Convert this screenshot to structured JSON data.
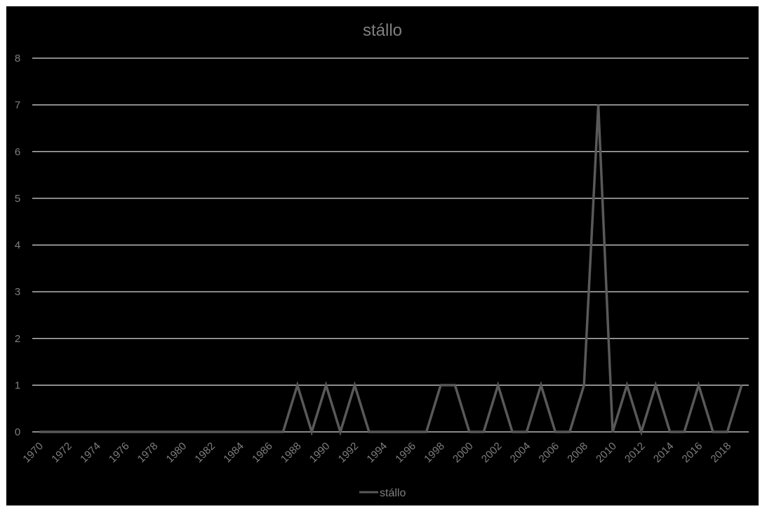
{
  "chart_data": {
    "type": "line",
    "title": "stállo",
    "xlabel": "",
    "ylabel": "",
    "x": [
      1970,
      1971,
      1972,
      1973,
      1974,
      1975,
      1976,
      1977,
      1978,
      1979,
      1980,
      1981,
      1982,
      1983,
      1984,
      1985,
      1986,
      1987,
      1988,
      1989,
      1990,
      1991,
      1992,
      1993,
      1994,
      1995,
      1996,
      1997,
      1998,
      1999,
      2000,
      2001,
      2002,
      2003,
      2004,
      2005,
      2006,
      2007,
      2008,
      2009,
      2010,
      2011,
      2012,
      2013,
      2014,
      2015,
      2016,
      2017,
      2018,
      2019
    ],
    "x_tick_labels": [
      "1970",
      "1972",
      "1974",
      "1976",
      "1978",
      "1980",
      "1982",
      "1984",
      "1986",
      "1988",
      "1990",
      "1992",
      "1994",
      "1996",
      "1998",
      "2000",
      "2002",
      "2004",
      "2006",
      "2008",
      "2010",
      "2012",
      "2014",
      "2016",
      "2018"
    ],
    "series": [
      {
        "name": "stállo",
        "color": "#595959",
        "values": [
          0,
          0,
          0,
          0,
          0,
          0,
          0,
          0,
          0,
          0,
          0,
          0,
          0,
          0,
          0,
          0,
          0,
          0,
          1,
          0,
          1,
          0,
          1,
          0,
          0,
          0,
          0,
          0,
          1,
          1,
          0,
          0,
          1,
          0,
          0,
          1,
          0,
          0,
          1,
          7,
          0,
          1,
          0,
          1,
          0,
          0,
          1,
          0,
          0,
          1
        ]
      }
    ],
    "y_tick_labels": [
      "0",
      "1",
      "2",
      "3",
      "4",
      "5",
      "6",
      "7",
      "8"
    ],
    "ylim": [
      0,
      8
    ],
    "grid": true,
    "gridline_color": "#d9d9d9",
    "background_color": "#000000",
    "text_color": "#7f7f7f",
    "legend_position": "bottom"
  }
}
